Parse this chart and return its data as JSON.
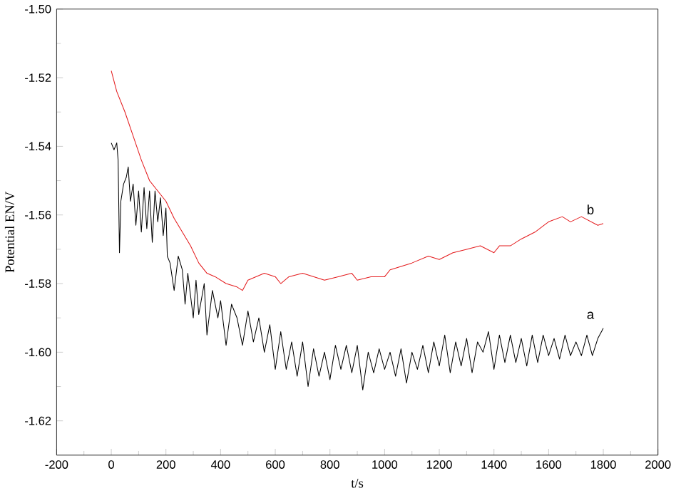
{
  "chart_data": {
    "type": "line",
    "xlabel": "t/s",
    "ylabel": "Potential EN/V",
    "xlim": [
      -200,
      2000
    ],
    "ylim": [
      -1.63,
      -1.5
    ],
    "xticks": [
      -200,
      0,
      200,
      400,
      600,
      800,
      1000,
      1200,
      1400,
      1600,
      1800,
      2000
    ],
    "yticks": [
      -1.62,
      {
        "value": -1.6,
        "label": "-1.60"
      },
      -1.58,
      -1.56,
      -1.54,
      -1.52,
      {
        "value": -1.5,
        "label": "-1.50"
      }
    ],
    "series": [
      {
        "name": "a",
        "color": "#000000",
        "x": [
          0,
          10,
          20,
          25,
          30,
          35,
          45,
          55,
          62,
          70,
          80,
          90,
          100,
          110,
          120,
          130,
          140,
          150,
          160,
          170,
          180,
          190,
          200,
          205,
          215,
          230,
          245,
          260,
          270,
          280,
          300,
          310,
          320,
          340,
          350,
          370,
          390,
          400,
          420,
          440,
          460,
          480,
          500,
          520,
          540,
          560,
          580,
          600,
          620,
          640,
          660,
          680,
          700,
          720,
          740,
          760,
          780,
          800,
          820,
          840,
          860,
          880,
          900,
          920,
          940,
          960,
          980,
          1000,
          1020,
          1040,
          1060,
          1080,
          1100,
          1120,
          1140,
          1160,
          1180,
          1200,
          1220,
          1240,
          1260,
          1280,
          1300,
          1320,
          1340,
          1360,
          1380,
          1400,
          1420,
          1440,
          1460,
          1480,
          1500,
          1520,
          1540,
          1560,
          1580,
          1600,
          1620,
          1640,
          1660,
          1680,
          1700,
          1720,
          1740,
          1760,
          1780,
          1800
        ],
        "values": [
          -1.539,
          -1.541,
          -1.539,
          -1.544,
          -1.571,
          -1.556,
          -1.551,
          -1.549,
          -1.546,
          -1.556,
          -1.551,
          -1.563,
          -1.553,
          -1.565,
          -1.552,
          -1.564,
          -1.553,
          -1.568,
          -1.553,
          -1.562,
          -1.555,
          -1.566,
          -1.558,
          -1.572,
          -1.574,
          -1.582,
          -1.572,
          -1.576,
          -1.586,
          -1.577,
          -1.59,
          -1.579,
          -1.589,
          -1.58,
          -1.595,
          -1.582,
          -1.59,
          -1.585,
          -1.598,
          -1.586,
          -1.59,
          -1.598,
          -1.588,
          -1.597,
          -1.59,
          -1.6,
          -1.592,
          -1.605,
          -1.594,
          -1.605,
          -1.597,
          -1.607,
          -1.597,
          -1.61,
          -1.599,
          -1.607,
          -1.6,
          -1.608,
          -1.598,
          -1.605,
          -1.598,
          -1.606,
          -1.598,
          -1.611,
          -1.6,
          -1.606,
          -1.599,
          -1.605,
          -1.6,
          -1.607,
          -1.599,
          -1.609,
          -1.6,
          -1.605,
          -1.598,
          -1.606,
          -1.597,
          -1.604,
          -1.595,
          -1.606,
          -1.597,
          -1.604,
          -1.596,
          -1.606,
          -1.597,
          -1.6,
          -1.594,
          -1.605,
          -1.595,
          -1.603,
          -1.595,
          -1.603,
          -1.596,
          -1.604,
          -1.595,
          -1.603,
          -1.595,
          -1.601,
          -1.596,
          -1.602,
          -1.595,
          -1.601,
          -1.597,
          -1.601,
          -1.595,
          -1.601,
          -1.596,
          -1.593
        ]
      },
      {
        "name": "b",
        "color": "#e41a1c",
        "x": [
          0,
          20,
          50,
          80,
          110,
          140,
          170,
          200,
          230,
          260,
          290,
          320,
          350,
          380,
          420,
          460,
          480,
          500,
          530,
          560,
          600,
          620,
          650,
          700,
          740,
          780,
          830,
          880,
          900,
          950,
          1000,
          1020,
          1060,
          1100,
          1160,
          1200,
          1250,
          1300,
          1350,
          1400,
          1420,
          1460,
          1500,
          1550,
          1600,
          1650,
          1680,
          1720,
          1780,
          1800
        ],
        "values": [
          -1.518,
          -1.524,
          -1.53,
          -1.537,
          -1.544,
          -1.55,
          -1.553,
          -1.556,
          -1.561,
          -1.565,
          -1.569,
          -1.574,
          -1.577,
          -1.578,
          -1.58,
          -1.581,
          -1.582,
          -1.579,
          -1.578,
          -1.577,
          -1.578,
          -1.58,
          -1.578,
          -1.577,
          -1.578,
          -1.579,
          -1.578,
          -1.577,
          -1.579,
          -1.578,
          -1.578,
          -1.576,
          -1.575,
          -1.574,
          -1.572,
          -1.573,
          -1.571,
          -1.57,
          -1.569,
          -1.571,
          -1.569,
          -1.569,
          -1.567,
          -1.565,
          -1.562,
          -1.5605,
          -1.562,
          -1.5605,
          -1.563,
          -1.5625
        ]
      }
    ]
  }
}
